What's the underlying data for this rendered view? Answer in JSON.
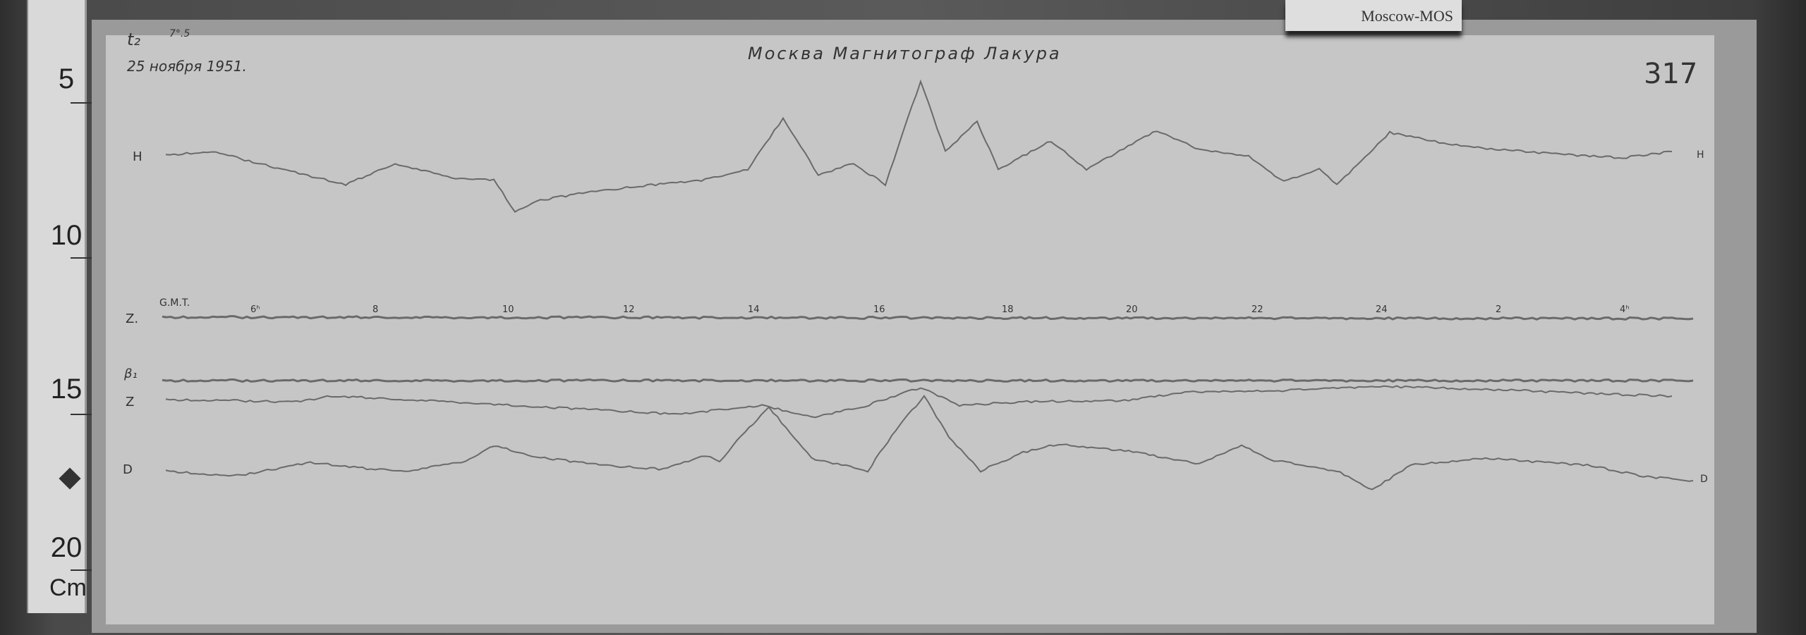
{
  "label_card": "Moscow-MOS",
  "header": {
    "date": "25 ноября 1951.",
    "title": "Москва  Магнитограф  Лакура",
    "sheet_number": "317",
    "temp_label": "t₂",
    "temp_value": "7°.5"
  },
  "channels": {
    "H": "H",
    "Z": "Z.",
    "base": "β₁",
    "Z2": "Z",
    "D": "D"
  },
  "time_axis": {
    "label": "G.M.T.",
    "ticks": [
      "6ʰ",
      "8",
      "10",
      "12",
      "14",
      "16",
      "18",
      "20",
      "22",
      "24",
      "2",
      "4ʰ"
    ]
  },
  "ruler": {
    "marks": [
      "5",
      "10",
      "15",
      "20"
    ],
    "unit": "Cm"
  }
}
